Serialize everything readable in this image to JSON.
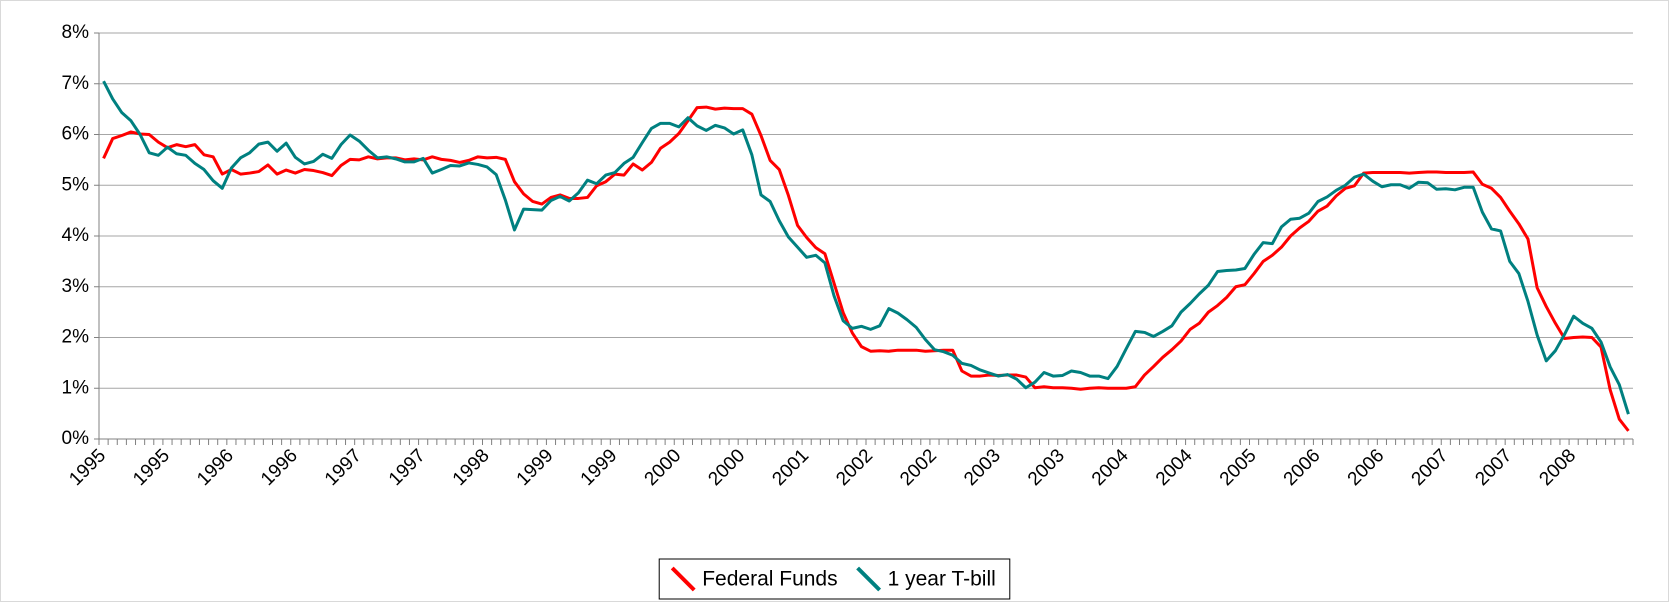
{
  "chart_data": {
    "type": "line",
    "categories": [
      "1995",
      null,
      null,
      null,
      null,
      null,
      null,
      "1995",
      null,
      null,
      null,
      null,
      null,
      null,
      "1996",
      null,
      null,
      null,
      null,
      null,
      null,
      "1996",
      null,
      null,
      null,
      null,
      null,
      null,
      "1997",
      null,
      null,
      null,
      null,
      null,
      null,
      "1997",
      null,
      null,
      null,
      null,
      null,
      null,
      "1998",
      null,
      null,
      null,
      null,
      null,
      null,
      "1999",
      null,
      null,
      null,
      null,
      null,
      null,
      "1999",
      null,
      null,
      null,
      null,
      null,
      null,
      "2000",
      null,
      null,
      null,
      null,
      null,
      null,
      "2000",
      null,
      null,
      null,
      null,
      null,
      null,
      "2001",
      null,
      null,
      null,
      null,
      null,
      null,
      "2002",
      null,
      null,
      null,
      null,
      null,
      null,
      "2002",
      null,
      null,
      null,
      null,
      null,
      null,
      "2003",
      null,
      null,
      null,
      null,
      null,
      null,
      "2003",
      null,
      null,
      null,
      null,
      null,
      null,
      "2004",
      null,
      null,
      null,
      null,
      null,
      null,
      "2004",
      null,
      null,
      null,
      null,
      null,
      null,
      "2005",
      null,
      null,
      null,
      null,
      null,
      null,
      "2006",
      null,
      null,
      null,
      null,
      null,
      null,
      "2006",
      null,
      null,
      null,
      null,
      null,
      null,
      "2007",
      null,
      null,
      null,
      null,
      null,
      null,
      "2007",
      null,
      null,
      null,
      null,
      null,
      null,
      "2008",
      null,
      null,
      null,
      null,
      null,
      null
    ],
    "series": [
      {
        "name": "Federal Funds",
        "color": "#ff0000",
        "values": [
          5.53,
          5.92,
          5.98,
          6.05,
          6.01,
          6.0,
          5.85,
          5.74,
          5.8,
          5.76,
          5.8,
          5.6,
          5.56,
          5.22,
          5.31,
          5.22,
          5.24,
          5.27,
          5.4,
          5.22,
          5.3,
          5.24,
          5.31,
          5.29,
          5.25,
          5.19,
          5.39,
          5.51,
          5.5,
          5.56,
          5.52,
          5.54,
          5.54,
          5.5,
          5.52,
          5.5,
          5.56,
          5.51,
          5.49,
          5.45,
          5.49,
          5.56,
          5.54,
          5.55,
          5.51,
          5.07,
          4.83,
          4.68,
          4.63,
          4.76,
          4.81,
          4.74,
          4.74,
          4.76,
          4.99,
          5.07,
          5.22,
          5.2,
          5.42,
          5.3,
          5.45,
          5.73,
          5.85,
          6.02,
          6.27,
          6.53,
          6.54,
          6.5,
          6.52,
          6.51,
          6.51,
          6.4,
          5.98,
          5.49,
          5.31,
          4.8,
          4.21,
          3.97,
          3.77,
          3.65,
          3.07,
          2.49,
          2.09,
          1.82,
          1.73,
          1.74,
          1.73,
          1.75,
          1.75,
          1.75,
          1.73,
          1.74,
          1.75,
          1.75,
          1.34,
          1.24,
          1.24,
          1.26,
          1.25,
          1.26,
          1.26,
          1.22,
          1.01,
          1.03,
          1.01,
          1.01,
          1.0,
          0.98,
          1.0,
          1.01,
          1.0,
          1.0,
          1.0,
          1.03,
          1.26,
          1.43,
          1.61,
          1.76,
          1.93,
          2.16,
          2.28,
          2.5,
          2.63,
          2.79,
          3.0,
          3.04,
          3.26,
          3.5,
          3.62,
          3.78,
          4.0,
          4.16,
          4.29,
          4.49,
          4.59,
          4.79,
          4.94,
          4.99,
          5.24,
          5.25,
          5.25,
          5.25,
          5.25,
          5.24,
          5.25,
          5.26,
          5.26,
          5.25,
          5.25,
          5.25,
          5.26,
          5.02,
          4.94,
          4.76,
          4.49,
          4.24,
          3.94,
          2.98,
          2.61,
          2.28,
          1.98,
          2.0,
          2.01,
          2.0,
          1.81,
          0.97,
          0.39,
          0.16
        ]
      },
      {
        "name": "1 year T-bill",
        "color": "#008080",
        "values": [
          7.05,
          6.7,
          6.43,
          6.27,
          6.0,
          5.64,
          5.59,
          5.75,
          5.62,
          5.59,
          5.43,
          5.31,
          5.09,
          4.94,
          5.34,
          5.54,
          5.64,
          5.81,
          5.85,
          5.67,
          5.83,
          5.55,
          5.42,
          5.47,
          5.61,
          5.53,
          5.8,
          5.99,
          5.87,
          5.69,
          5.54,
          5.56,
          5.52,
          5.46,
          5.46,
          5.53,
          5.24,
          5.31,
          5.39,
          5.38,
          5.44,
          5.41,
          5.36,
          5.21,
          4.71,
          4.12,
          4.53,
          4.52,
          4.51,
          4.7,
          4.78,
          4.69,
          4.85,
          5.1,
          5.03,
          5.2,
          5.25,
          5.43,
          5.55,
          5.84,
          6.12,
          6.22,
          6.22,
          6.15,
          6.33,
          6.17,
          6.08,
          6.18,
          6.13,
          6.01,
          6.09,
          5.6,
          4.81,
          4.68,
          4.3,
          3.98,
          3.78,
          3.58,
          3.62,
          3.47,
          2.82,
          2.33,
          2.18,
          2.22,
          2.16,
          2.23,
          2.57,
          2.48,
          2.35,
          2.2,
          1.96,
          1.76,
          1.72,
          1.65,
          1.49,
          1.45,
          1.36,
          1.3,
          1.24,
          1.27,
          1.18,
          1.01,
          1.12,
          1.31,
          1.24,
          1.25,
          1.34,
          1.31,
          1.24,
          1.24,
          1.19,
          1.43,
          1.78,
          2.12,
          2.1,
          2.02,
          2.12,
          2.23,
          2.5,
          2.67,
          2.86,
          3.03,
          3.3,
          3.32,
          3.33,
          3.36,
          3.64,
          3.87,
          3.85,
          4.18,
          4.33,
          4.35,
          4.45,
          4.68,
          4.77,
          4.9,
          5.0,
          5.16,
          5.22,
          5.08,
          4.97,
          5.01,
          5.01,
          4.94,
          5.06,
          5.05,
          4.92,
          4.93,
          4.91,
          4.96,
          4.96,
          4.47,
          4.14,
          4.1,
          3.5,
          3.26,
          2.71,
          2.05,
          1.54,
          1.74,
          2.06,
          2.42,
          2.28,
          2.18,
          1.91,
          1.42,
          1.07,
          0.49
        ]
      }
    ],
    "ylim": [
      0,
      8
    ],
    "yticks": [
      {
        "value": 0,
        "label": "0%"
      },
      {
        "value": 1,
        "label": "1%"
      },
      {
        "value": 2,
        "label": "2%"
      },
      {
        "value": 3,
        "label": "3%"
      },
      {
        "value": 4,
        "label": "4%"
      },
      {
        "value": 5,
        "label": "5%"
      },
      {
        "value": 6,
        "label": "6%"
      },
      {
        "value": 7,
        "label": "7%"
      },
      {
        "value": 8,
        "label": "8%"
      }
    ],
    "grid": true,
    "legend": "bottom"
  }
}
